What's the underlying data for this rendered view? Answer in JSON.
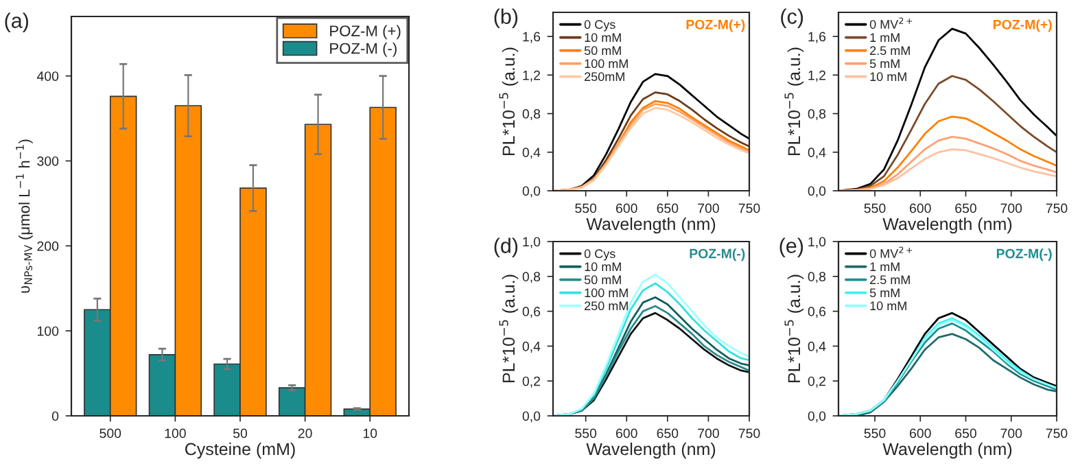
{
  "chart_data": [
    {
      "type": "bar",
      "title": "(a)",
      "xlabel": "Cysteine (mM)",
      "ylabel": "υ$_{NPs-MV}$ (μmol L$^{−1}$ h$^{−1}$)",
      "categories": [
        "500",
        "100",
        "50",
        "20",
        "10"
      ],
      "ylim": [
        0,
        470
      ],
      "yticks": [
        0,
        100,
        200,
        300,
        400
      ],
      "legend": "top right",
      "series": [
        {
          "name": "POZ-M (-)",
          "color": "#1a8c8c",
          "values": [
            125,
            72,
            61,
            33,
            8
          ],
          "errors": [
            13,
            7,
            6,
            3,
            1
          ]
        },
        {
          "name": "POZ-M (+)",
          "color": "#ff8c00",
          "values": [
            376,
            365,
            268,
            343,
            363
          ],
          "errors": [
            38,
            36,
            27,
            35,
            37
          ]
        }
      ]
    },
    {
      "type": "line",
      "title": "(b)",
      "xlabel": "Wavelength (nm)",
      "ylabel": "PL*10$^{−5}$ (a.u.)",
      "annotations": [
        "POZ-M(+)"
      ],
      "legend": "top left",
      "x": [
        510,
        530,
        545,
        560,
        575,
        590,
        605,
        620,
        635,
        650,
        665,
        680,
        695,
        710,
        725,
        740,
        750
      ],
      "xlim": [
        510,
        750
      ],
      "xticks": [
        550,
        600,
        650,
        700,
        750
      ],
      "ylim": [
        0,
        1.85
      ],
      "yticks": [
        {
          "value": 0,
          "label": "0,0"
        },
        {
          "value": 0.4,
          "label": "0,4"
        },
        {
          "value": 0.8,
          "label": "0,8"
        },
        {
          "value": 1.2,
          "label": "1,2"
        },
        {
          "value": 1.6,
          "label": "1,6"
        }
      ],
      "series": [
        {
          "name": "0 Cys",
          "color": "#000000",
          "values": [
            0,
            0.01,
            0.05,
            0.16,
            0.38,
            0.64,
            0.92,
            1.13,
            1.21,
            1.19,
            1.1,
            0.99,
            0.88,
            0.77,
            0.68,
            0.59,
            0.54
          ]
        },
        {
          "name": "10 mM",
          "color": "#6b3a1a",
          "values": [
            0,
            0.01,
            0.04,
            0.13,
            0.32,
            0.54,
            0.78,
            0.95,
            1.02,
            1.0,
            0.93,
            0.84,
            0.74,
            0.65,
            0.57,
            0.5,
            0.46
          ]
        },
        {
          "name": "50 mM",
          "color": "#ff7f00",
          "values": [
            0,
            0.01,
            0.04,
            0.12,
            0.29,
            0.49,
            0.71,
            0.86,
            0.93,
            0.91,
            0.85,
            0.76,
            0.68,
            0.6,
            0.52,
            0.46,
            0.42
          ]
        },
        {
          "name": "100 mM",
          "color": "#ffa060",
          "values": [
            0,
            0.01,
            0.04,
            0.12,
            0.28,
            0.48,
            0.68,
            0.84,
            0.9,
            0.88,
            0.82,
            0.74,
            0.66,
            0.58,
            0.5,
            0.44,
            0.41
          ]
        },
        {
          "name": "250mM",
          "color": "#ffc9a0",
          "values": [
            0,
            0.01,
            0.03,
            0.11,
            0.27,
            0.46,
            0.65,
            0.8,
            0.86,
            0.84,
            0.78,
            0.71,
            0.63,
            0.55,
            0.48,
            0.42,
            0.39
          ]
        }
      ]
    },
    {
      "type": "line",
      "title": "(c)",
      "xlabel": "Wavelength (nm)",
      "ylabel": "PL*10$^{−5}$ (a.u.)",
      "annotations": [
        "POZ-M(+)"
      ],
      "legend": "top left",
      "x": [
        510,
        530,
        545,
        560,
        575,
        590,
        605,
        620,
        635,
        650,
        665,
        680,
        695,
        710,
        725,
        740,
        750
      ],
      "xlim": [
        510,
        750
      ],
      "xticks": [
        550,
        600,
        650,
        700,
        750
      ],
      "ylim": [
        0,
        1.85
      ],
      "yticks": [
        {
          "value": 0,
          "label": "0,0"
        },
        {
          "value": 0.4,
          "label": "0,4"
        },
        {
          "value": 0.8,
          "label": "0,8"
        },
        {
          "value": 1.2,
          "label": "1,2"
        },
        {
          "value": 1.6,
          "label": "1,6"
        }
      ],
      "series": [
        {
          "name": "0 MV$^{2+}$",
          "color": "#000000",
          "values": [
            0,
            0.02,
            0.07,
            0.22,
            0.52,
            0.89,
            1.28,
            1.56,
            1.68,
            1.63,
            1.48,
            1.31,
            1.13,
            0.94,
            0.79,
            0.66,
            0.57
          ]
        },
        {
          "name": "1 mM",
          "color": "#7a4a2a",
          "values": [
            0,
            0.01,
            0.05,
            0.15,
            0.37,
            0.63,
            0.9,
            1.11,
            1.19,
            1.15,
            1.05,
            0.93,
            0.8,
            0.67,
            0.56,
            0.46,
            0.4
          ]
        },
        {
          "name": "2.5 mM",
          "color": "#ff8000",
          "values": [
            0,
            0.01,
            0.03,
            0.1,
            0.24,
            0.41,
            0.59,
            0.72,
            0.77,
            0.75,
            0.68,
            0.6,
            0.52,
            0.43,
            0.36,
            0.3,
            0.26
          ]
        },
        {
          "name": "5 mM",
          "color": "#ffa070",
          "values": [
            0,
            0.01,
            0.02,
            0.07,
            0.17,
            0.3,
            0.43,
            0.52,
            0.56,
            0.54,
            0.49,
            0.44,
            0.38,
            0.31,
            0.26,
            0.22,
            0.19
          ]
        },
        {
          "name": "10 mM",
          "color": "#ffc0a0",
          "values": [
            0,
            0,
            0.02,
            0.06,
            0.13,
            0.23,
            0.33,
            0.4,
            0.43,
            0.42,
            0.38,
            0.34,
            0.29,
            0.24,
            0.2,
            0.17,
            0.15
          ]
        }
      ]
    },
    {
      "type": "line",
      "title": "(d)",
      "xlabel": "Wavelength (nm)",
      "ylabel": "PL*10$^{−5}$ (a.u.)",
      "annotations": [
        "POZ-M(-)"
      ],
      "legend": "top left",
      "x": [
        510,
        530,
        545,
        560,
        575,
        590,
        605,
        620,
        635,
        650,
        665,
        680,
        695,
        710,
        725,
        740,
        750
      ],
      "xlim": [
        510,
        750
      ],
      "xticks": [
        550,
        600,
        650,
        700,
        750
      ],
      "ylim": [
        0,
        1.0
      ],
      "yticks": [
        {
          "value": 0,
          "label": "0,0"
        },
        {
          "value": 0.2,
          "label": "0,2"
        },
        {
          "value": 0.4,
          "label": "0,4"
        },
        {
          "value": 0.6,
          "label": "0,6"
        },
        {
          "value": 0.8,
          "label": "0,8"
        },
        {
          "value": 1.0,
          "label": "1,0"
        }
      ],
      "series": [
        {
          "name": "0 Cys",
          "color": "#111111",
          "values": [
            0,
            0.01,
            0.03,
            0.09,
            0.21,
            0.34,
            0.47,
            0.56,
            0.59,
            0.55,
            0.5,
            0.44,
            0.38,
            0.33,
            0.29,
            0.26,
            0.25
          ]
        },
        {
          "name": "10 mM",
          "color": "#0f5f5f",
          "values": [
            0,
            0.01,
            0.03,
            0.11,
            0.24,
            0.39,
            0.54,
            0.65,
            0.68,
            0.64,
            0.57,
            0.5,
            0.44,
            0.38,
            0.33,
            0.3,
            0.29
          ]
        },
        {
          "name": "50 mM",
          "color": "#2a8a8a",
          "values": [
            0,
            0.01,
            0.03,
            0.1,
            0.23,
            0.37,
            0.5,
            0.6,
            0.63,
            0.59,
            0.53,
            0.47,
            0.4,
            0.35,
            0.31,
            0.28,
            0.26
          ]
        },
        {
          "name": "100 mM",
          "color": "#33e0e0",
          "values": [
            0,
            0.01,
            0.04,
            0.12,
            0.27,
            0.44,
            0.61,
            0.72,
            0.76,
            0.71,
            0.64,
            0.56,
            0.49,
            0.43,
            0.37,
            0.33,
            0.32
          ]
        },
        {
          "name": "250 mM",
          "color": "#a0ffff",
          "values": [
            0,
            0.01,
            0.04,
            0.13,
            0.29,
            0.47,
            0.65,
            0.77,
            0.81,
            0.76,
            0.68,
            0.6,
            0.52,
            0.45,
            0.4,
            0.36,
            0.34
          ]
        }
      ]
    },
    {
      "type": "line",
      "title": "(e)",
      "xlabel": "Wavelength (nm)",
      "ylabel": "PL*10$^{−5}$ (a.u.)",
      "annotations": [
        "POZ-M(-)"
      ],
      "legend": "top left",
      "x": [
        510,
        530,
        545,
        560,
        575,
        590,
        605,
        620,
        635,
        650,
        665,
        680,
        695,
        710,
        725,
        740,
        750
      ],
      "xlim": [
        510,
        750
      ],
      "xticks": [
        550,
        600,
        650,
        700,
        750
      ],
      "ylim": [
        0,
        1.0
      ],
      "yticks": [
        {
          "value": 0,
          "label": "0,0"
        },
        {
          "value": 0.2,
          "label": "0,2"
        },
        {
          "value": 0.4,
          "label": "0,4"
        },
        {
          "value": 0.6,
          "label": "0,6"
        },
        {
          "value": 0.8,
          "label": "0,8"
        },
        {
          "value": 1.0,
          "label": "1,0"
        }
      ],
      "series": [
        {
          "name": "0 MV$^{2+}$",
          "color": "#000000",
          "values": [
            0,
            0.01,
            0.03,
            0.09,
            0.21,
            0.34,
            0.47,
            0.56,
            0.59,
            0.55,
            0.48,
            0.41,
            0.34,
            0.27,
            0.22,
            0.19,
            0.17
          ]
        },
        {
          "name": "1 mM",
          "color": "#1f6a6a",
          "values": [
            0,
            0,
            0.02,
            0.08,
            0.17,
            0.27,
            0.38,
            0.45,
            0.47,
            0.44,
            0.39,
            0.32,
            0.27,
            0.22,
            0.18,
            0.15,
            0.14
          ]
        },
        {
          "name": "2.5 mM",
          "color": "#1a9090",
          "values": [
            0,
            0.01,
            0.03,
            0.08,
            0.19,
            0.31,
            0.42,
            0.5,
            0.53,
            0.49,
            0.43,
            0.37,
            0.3,
            0.24,
            0.2,
            0.17,
            0.15
          ]
        },
        {
          "name": "5 mM",
          "color": "#40f0f0",
          "values": [
            0,
            0.01,
            0.03,
            0.09,
            0.2,
            0.32,
            0.45,
            0.53,
            0.56,
            0.52,
            0.46,
            0.39,
            0.32,
            0.26,
            0.21,
            0.18,
            0.16
          ]
        },
        {
          "name": "10 mM",
          "color": "#90ffff",
          "values": [
            0,
            0.01,
            0.03,
            0.09,
            0.2,
            0.32,
            0.44,
            0.52,
            0.55,
            0.51,
            0.45,
            0.38,
            0.31,
            0.25,
            0.21,
            0.18,
            0.16
          ]
        }
      ]
    }
  ]
}
